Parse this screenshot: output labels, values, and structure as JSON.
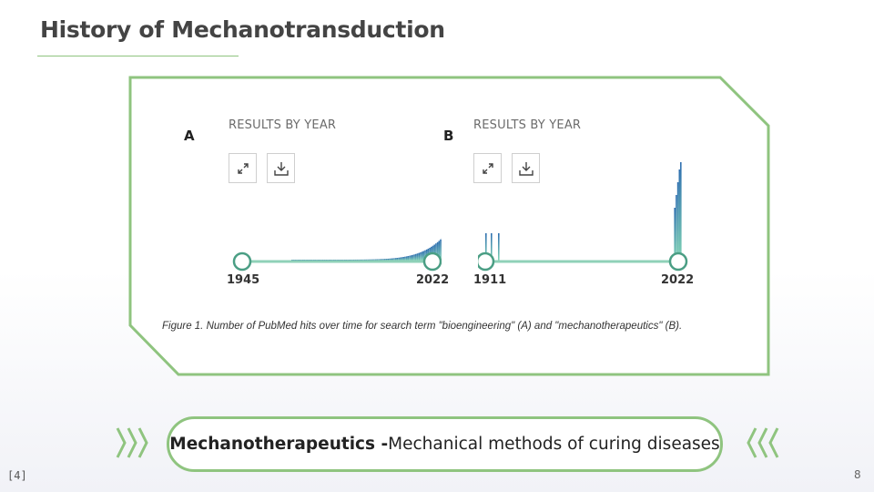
{
  "slide": {
    "title": "History of Mechanotransduction",
    "page_number": "8",
    "reference": "[4]",
    "accent_color": "#8fc47f"
  },
  "figure": {
    "panels": [
      {
        "letter": "A",
        "header": "RESULTS BY YEAR",
        "start_year": "1945",
        "end_year": "2022",
        "term": "bioengineering"
      },
      {
        "letter": "B",
        "header": "RESULTS BY YEAR",
        "start_year": "1911",
        "end_year": "2022",
        "term": "mechanotherapeutics"
      }
    ],
    "icons": [
      "expand-icon",
      "download-icon"
    ],
    "caption": "Figure 1. Number of PubMed hits over time for search term \"bioengineering\" (A) and \"mechanotherapeutics\" (B)."
  },
  "callout": {
    "term": "Mechanotherapeutics -",
    "definition": " Mechanical methods of curing diseases"
  }
}
